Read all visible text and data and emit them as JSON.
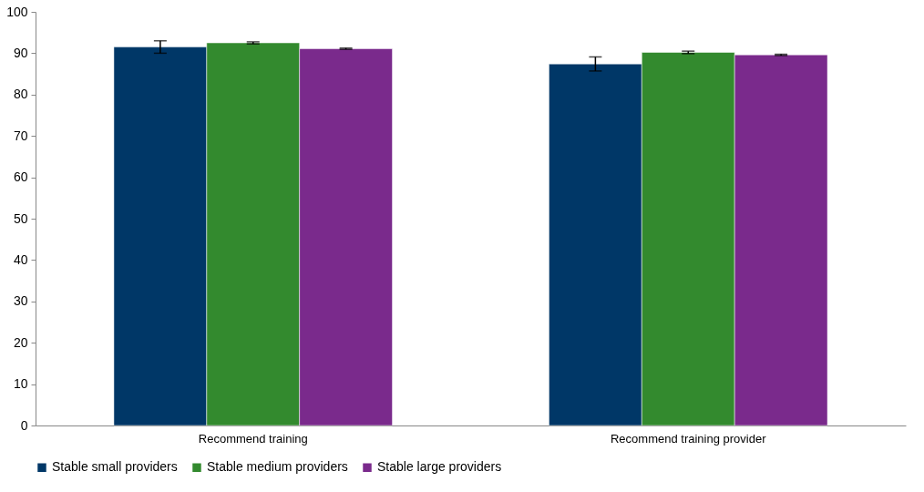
{
  "chart_data": {
    "type": "bar",
    "categories": [
      "Recommend training",
      "Recommend training provider"
    ],
    "series": [
      {
        "name": "Stable small providers",
        "color": "#003767",
        "values": [
          91.5,
          87.4
        ],
        "errors": [
          1.5,
          1.7
        ]
      },
      {
        "name": "Stable medium providers",
        "color": "#338a2e",
        "values": [
          92.5,
          90.2
        ],
        "errors": [
          0.25,
          0.3
        ]
      },
      {
        "name": "Stable large providers",
        "color": "#7a2a8c",
        "values": [
          91.1,
          89.6
        ],
        "errors": [
          0.15,
          0.15
        ]
      }
    ],
    "ylim": [
      0,
      100
    ],
    "yticks": [
      0,
      10,
      20,
      30,
      40,
      50,
      60,
      70,
      80,
      90,
      100
    ],
    "grid": false,
    "legend": "bottom"
  }
}
